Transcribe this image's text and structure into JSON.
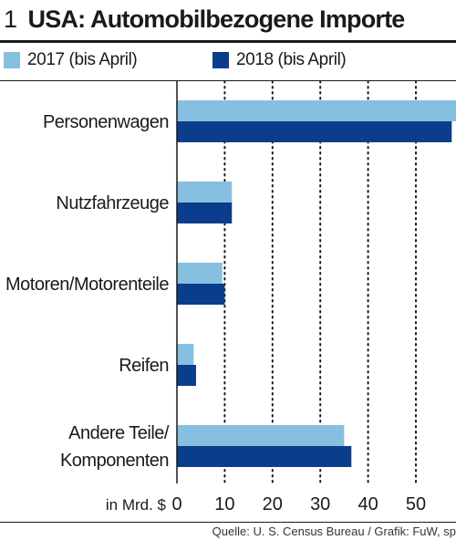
{
  "header": {
    "number": "1",
    "title": "USA: Automobilbezogene Importe"
  },
  "source": "Quelle: U. S. Census Bureau / Grafik: FuW, sp",
  "chart_data": {
    "type": "bar",
    "orientation": "horizontal",
    "categories": [
      [
        "Personenwagen"
      ],
      [
        "Nutzfahrzeuge"
      ],
      [
        "Motoren/Motorenteile"
      ],
      [
        "Reifen"
      ],
      [
        "Andere Teile/",
        "Komponenten"
      ]
    ],
    "series": [
      {
        "name": "2017 (bis April)",
        "color": "#87bfe0",
        "values": [
          58.5,
          11.5,
          9.5,
          3.5,
          35
        ]
      },
      {
        "name": "2018 (bis April)",
        "color": "#0a3d8c",
        "values": [
          57.5,
          11.5,
          10,
          4,
          36.5
        ]
      }
    ],
    "unit_label": "in Mrd. $",
    "xticks": [
      0,
      10,
      20,
      30,
      40,
      50
    ],
    "xlim": [
      0,
      58
    ],
    "grid": "vertical-dotted",
    "legend": "top"
  }
}
